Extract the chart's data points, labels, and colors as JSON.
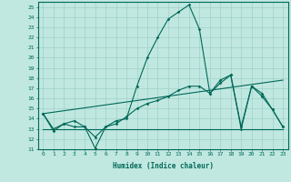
{
  "xlabel": "Humidex (Indice chaleur)",
  "bg_color": "#c0e8e0",
  "grid_color": "#a0d0c8",
  "line_color": "#006858",
  "xlim": [
    -0.5,
    23.5
  ],
  "ylim": [
    11,
    25.5
  ],
  "xticks": [
    0,
    1,
    2,
    3,
    4,
    5,
    6,
    7,
    8,
    9,
    10,
    11,
    12,
    13,
    14,
    15,
    16,
    17,
    18,
    19,
    20,
    21,
    22,
    23
  ],
  "yticks": [
    11,
    12,
    13,
    14,
    15,
    16,
    17,
    18,
    19,
    20,
    21,
    22,
    23,
    24,
    25
  ],
  "line1_x": [
    0,
    1,
    2,
    3,
    4,
    5,
    6,
    7,
    8,
    9,
    10,
    11,
    12,
    13,
    14,
    15,
    16,
    17,
    18,
    19,
    20,
    21,
    22,
    23
  ],
  "line1_y": [
    14.5,
    12.8,
    13.5,
    13.2,
    13.2,
    11.1,
    13.2,
    13.8,
    14.0,
    17.2,
    20.0,
    22.0,
    23.8,
    24.5,
    25.2,
    22.8,
    16.5,
    17.8,
    18.3,
    13.0,
    17.2,
    16.2,
    14.9,
    13.2
  ],
  "line2_x": [
    0,
    1,
    2,
    3,
    4,
    5,
    6,
    7,
    8,
    9,
    10,
    11,
    12,
    13,
    14,
    15,
    16,
    17,
    18,
    19,
    20,
    21,
    22,
    23
  ],
  "line2_y": [
    14.5,
    13.0,
    13.5,
    13.8,
    13.2,
    12.2,
    13.2,
    13.5,
    14.2,
    15.0,
    15.5,
    15.8,
    16.2,
    16.8,
    17.2,
    17.2,
    16.5,
    17.5,
    18.3,
    13.2,
    17.2,
    16.5,
    14.9,
    13.2
  ],
  "line3_x": [
    0,
    23
  ],
  "line3_y": [
    13.0,
    13.0
  ],
  "line4_x": [
    0,
    23
  ],
  "line4_y": [
    14.5,
    17.8
  ]
}
